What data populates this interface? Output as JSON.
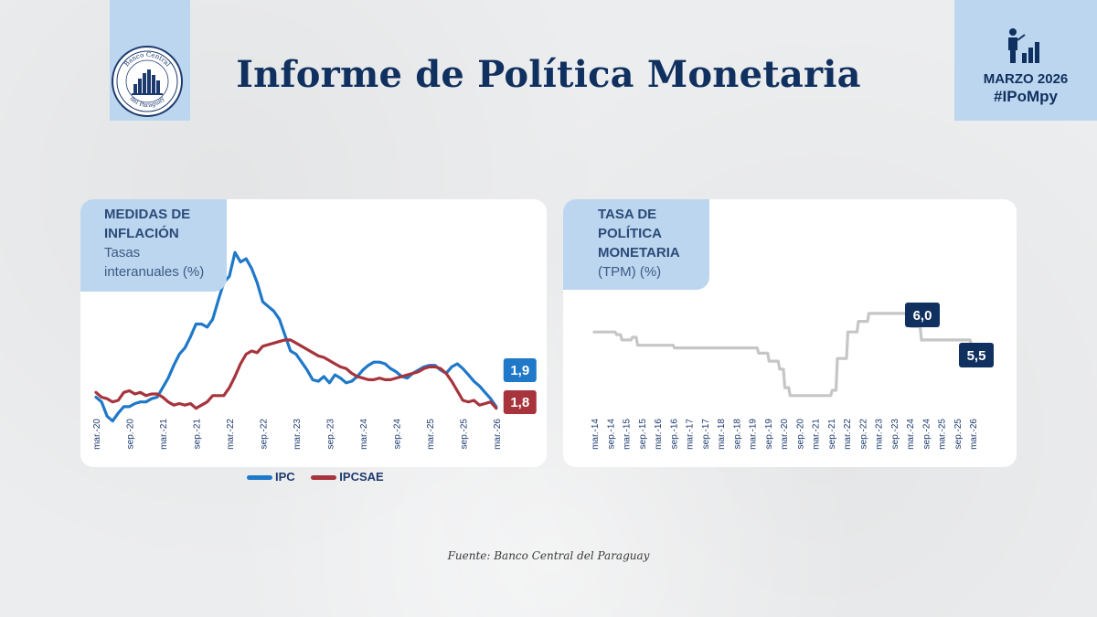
{
  "header": {
    "title": "Informe de Política Monetaria",
    "edition": "MARZO 2026",
    "hashtag": "#IPoMpy",
    "logo_text_top": "Banco Central",
    "logo_text_bottom": "del Paraguay"
  },
  "colors": {
    "navy": "#10305f",
    "light_blue": "#bcd6ef",
    "ipc": "#1f78c8",
    "ipcsae": "#a7343d",
    "tpm": "#c6c6c6"
  },
  "icons": [
    "logo-seal-icon",
    "person-bar-chart-icon"
  ],
  "footer": {
    "source": "Fuente: Banco Central del Paraguay"
  },
  "chart_data": [
    {
      "type": "line",
      "title": "MEDIDAS DE INFLACIÓN",
      "subtitle_line1": "Tasas",
      "subtitle_line2": "interanuales (%)",
      "x_ticks": [
        "mar.-20",
        "sep.-20",
        "mar.-21",
        "sep.-21",
        "mar.-22",
        "sep.-22",
        "mar.-23",
        "sep.-23",
        "mar.-24",
        "sep.-24",
        "mar.-25",
        "sep.-25",
        "mar.-26"
      ],
      "x_start": "mar.-20",
      "ylim": [
        0,
        12
      ],
      "grid": false,
      "legend": "bottom",
      "series": [
        {
          "name": "IPC",
          "color": "#1f78c8",
          "values": [
            2.5,
            2.2,
            1.3,
            1.0,
            1.5,
            1.9,
            1.9,
            2.1,
            2.2,
            2.2,
            2.4,
            2.5,
            3.1,
            3.7,
            4.5,
            5.2,
            5.6,
            6.3,
            7.1,
            7.1,
            6.9,
            7.4,
            8.6,
            9.7,
            10.1,
            11.6,
            11.0,
            11.2,
            10.6,
            9.7,
            8.5,
            8.2,
            7.9,
            7.4,
            6.4,
            5.4,
            5.2,
            4.7,
            4.2,
            3.6,
            3.5,
            3.8,
            3.4,
            3.9,
            3.7,
            3.4,
            3.5,
            3.8,
            4.2,
            4.5,
            4.7,
            4.7,
            4.6,
            4.3,
            4.1,
            3.8,
            3.7,
            4.0,
            4.2,
            4.4,
            4.5,
            4.5,
            4.2,
            4.0,
            4.4,
            4.6,
            4.3,
            3.9,
            3.5,
            3.2,
            2.8,
            2.4,
            1.9
          ],
          "end_label": "1,9"
        },
        {
          "name": "IPCSAE",
          "color": "#a7343d",
          "values": [
            2.8,
            2.5,
            2.4,
            2.2,
            2.3,
            2.8,
            2.9,
            2.7,
            2.8,
            2.6,
            2.7,
            2.7,
            2.5,
            2.2,
            2.0,
            2.1,
            2.0,
            2.1,
            1.8,
            2.0,
            2.2,
            2.6,
            2.6,
            2.6,
            3.1,
            3.8,
            4.6,
            5.2,
            5.4,
            5.3,
            5.7,
            5.8,
            5.9,
            6.0,
            6.1,
            6.1,
            5.9,
            5.7,
            5.5,
            5.3,
            5.1,
            5.0,
            4.8,
            4.6,
            4.4,
            4.3,
            4.0,
            3.8,
            3.7,
            3.6,
            3.6,
            3.7,
            3.6,
            3.6,
            3.7,
            3.8,
            3.9,
            4.0,
            4.1,
            4.3,
            4.4,
            4.4,
            4.3,
            4.0,
            3.5,
            2.9,
            2.3,
            2.2,
            2.3,
            2.0,
            2.1,
            2.2,
            1.8
          ],
          "end_label": "1,8"
        }
      ]
    },
    {
      "type": "line",
      "title_line1": "TASA DE",
      "title_line2": "POLÍTICA",
      "title_line3": "MONETARIA",
      "subtitle": "(TPM) (%)",
      "x_ticks": [
        "mar.-14",
        "sep.-14",
        "mar.-15",
        "sep.-15",
        "mar.-16",
        "sep.-16",
        "mar.-17",
        "sep.-17",
        "mar.-18",
        "sep.-18",
        "mar.-19",
        "sep.-19",
        "mar.-20",
        "sep.-20",
        "mar.-21",
        "sep.-21",
        "mar.-22",
        "sep.-22",
        "mar.-23",
        "sep.-23",
        "mar.-24",
        "sep.-24",
        "mar.-25",
        "sep.-25",
        "mar.-26"
      ],
      "x_start": "mar.-14",
      "ylim": [
        0,
        10
      ],
      "grid": false,
      "legend": "none",
      "series": [
        {
          "color": "#c6c6c6",
          "steps": [
            {
              "from": 0,
              "to": 8,
              "value": 6.75
            },
            {
              "from": 8,
              "to": 10,
              "value": 6.5
            },
            {
              "from": 10,
              "to": 14,
              "value": 6.0
            },
            {
              "from": 14,
              "to": 16,
              "value": 6.25
            },
            {
              "from": 16,
              "to": 30,
              "value": 5.5
            },
            {
              "from": 30,
              "to": 48,
              "value": 5.25
            },
            {
              "from": 48,
              "to": 62,
              "value": 5.25
            },
            {
              "from": 62,
              "to": 66,
              "value": 4.75
            },
            {
              "from": 66,
              "to": 70,
              "value": 4.0
            },
            {
              "from": 70,
              "to": 72,
              "value": 3.25
            },
            {
              "from": 72,
              "to": 74,
              "value": 1.5
            },
            {
              "from": 74,
              "to": 90,
              "value": 0.75
            },
            {
              "from": 90,
              "to": 92,
              "value": 1.25
            },
            {
              "from": 92,
              "to": 96,
              "value": 4.25
            },
            {
              "from": 96,
              "to": 100,
              "value": 6.75
            },
            {
              "from": 100,
              "to": 104,
              "value": 7.75
            },
            {
              "from": 104,
              "to": 120,
              "value": 8.5
            },
            {
              "from": 120,
              "to": 124,
              "value": 7.25
            },
            {
              "from": 124,
              "to": 130,
              "value": 6.0
            },
            {
              "from": 130,
              "to": 143,
              "value": 6.0
            },
            {
              "from": 143,
              "to": 145,
              "value": 5.5
            }
          ],
          "end_label_a": "6,0",
          "end_label_b": "5,5"
        }
      ]
    }
  ]
}
